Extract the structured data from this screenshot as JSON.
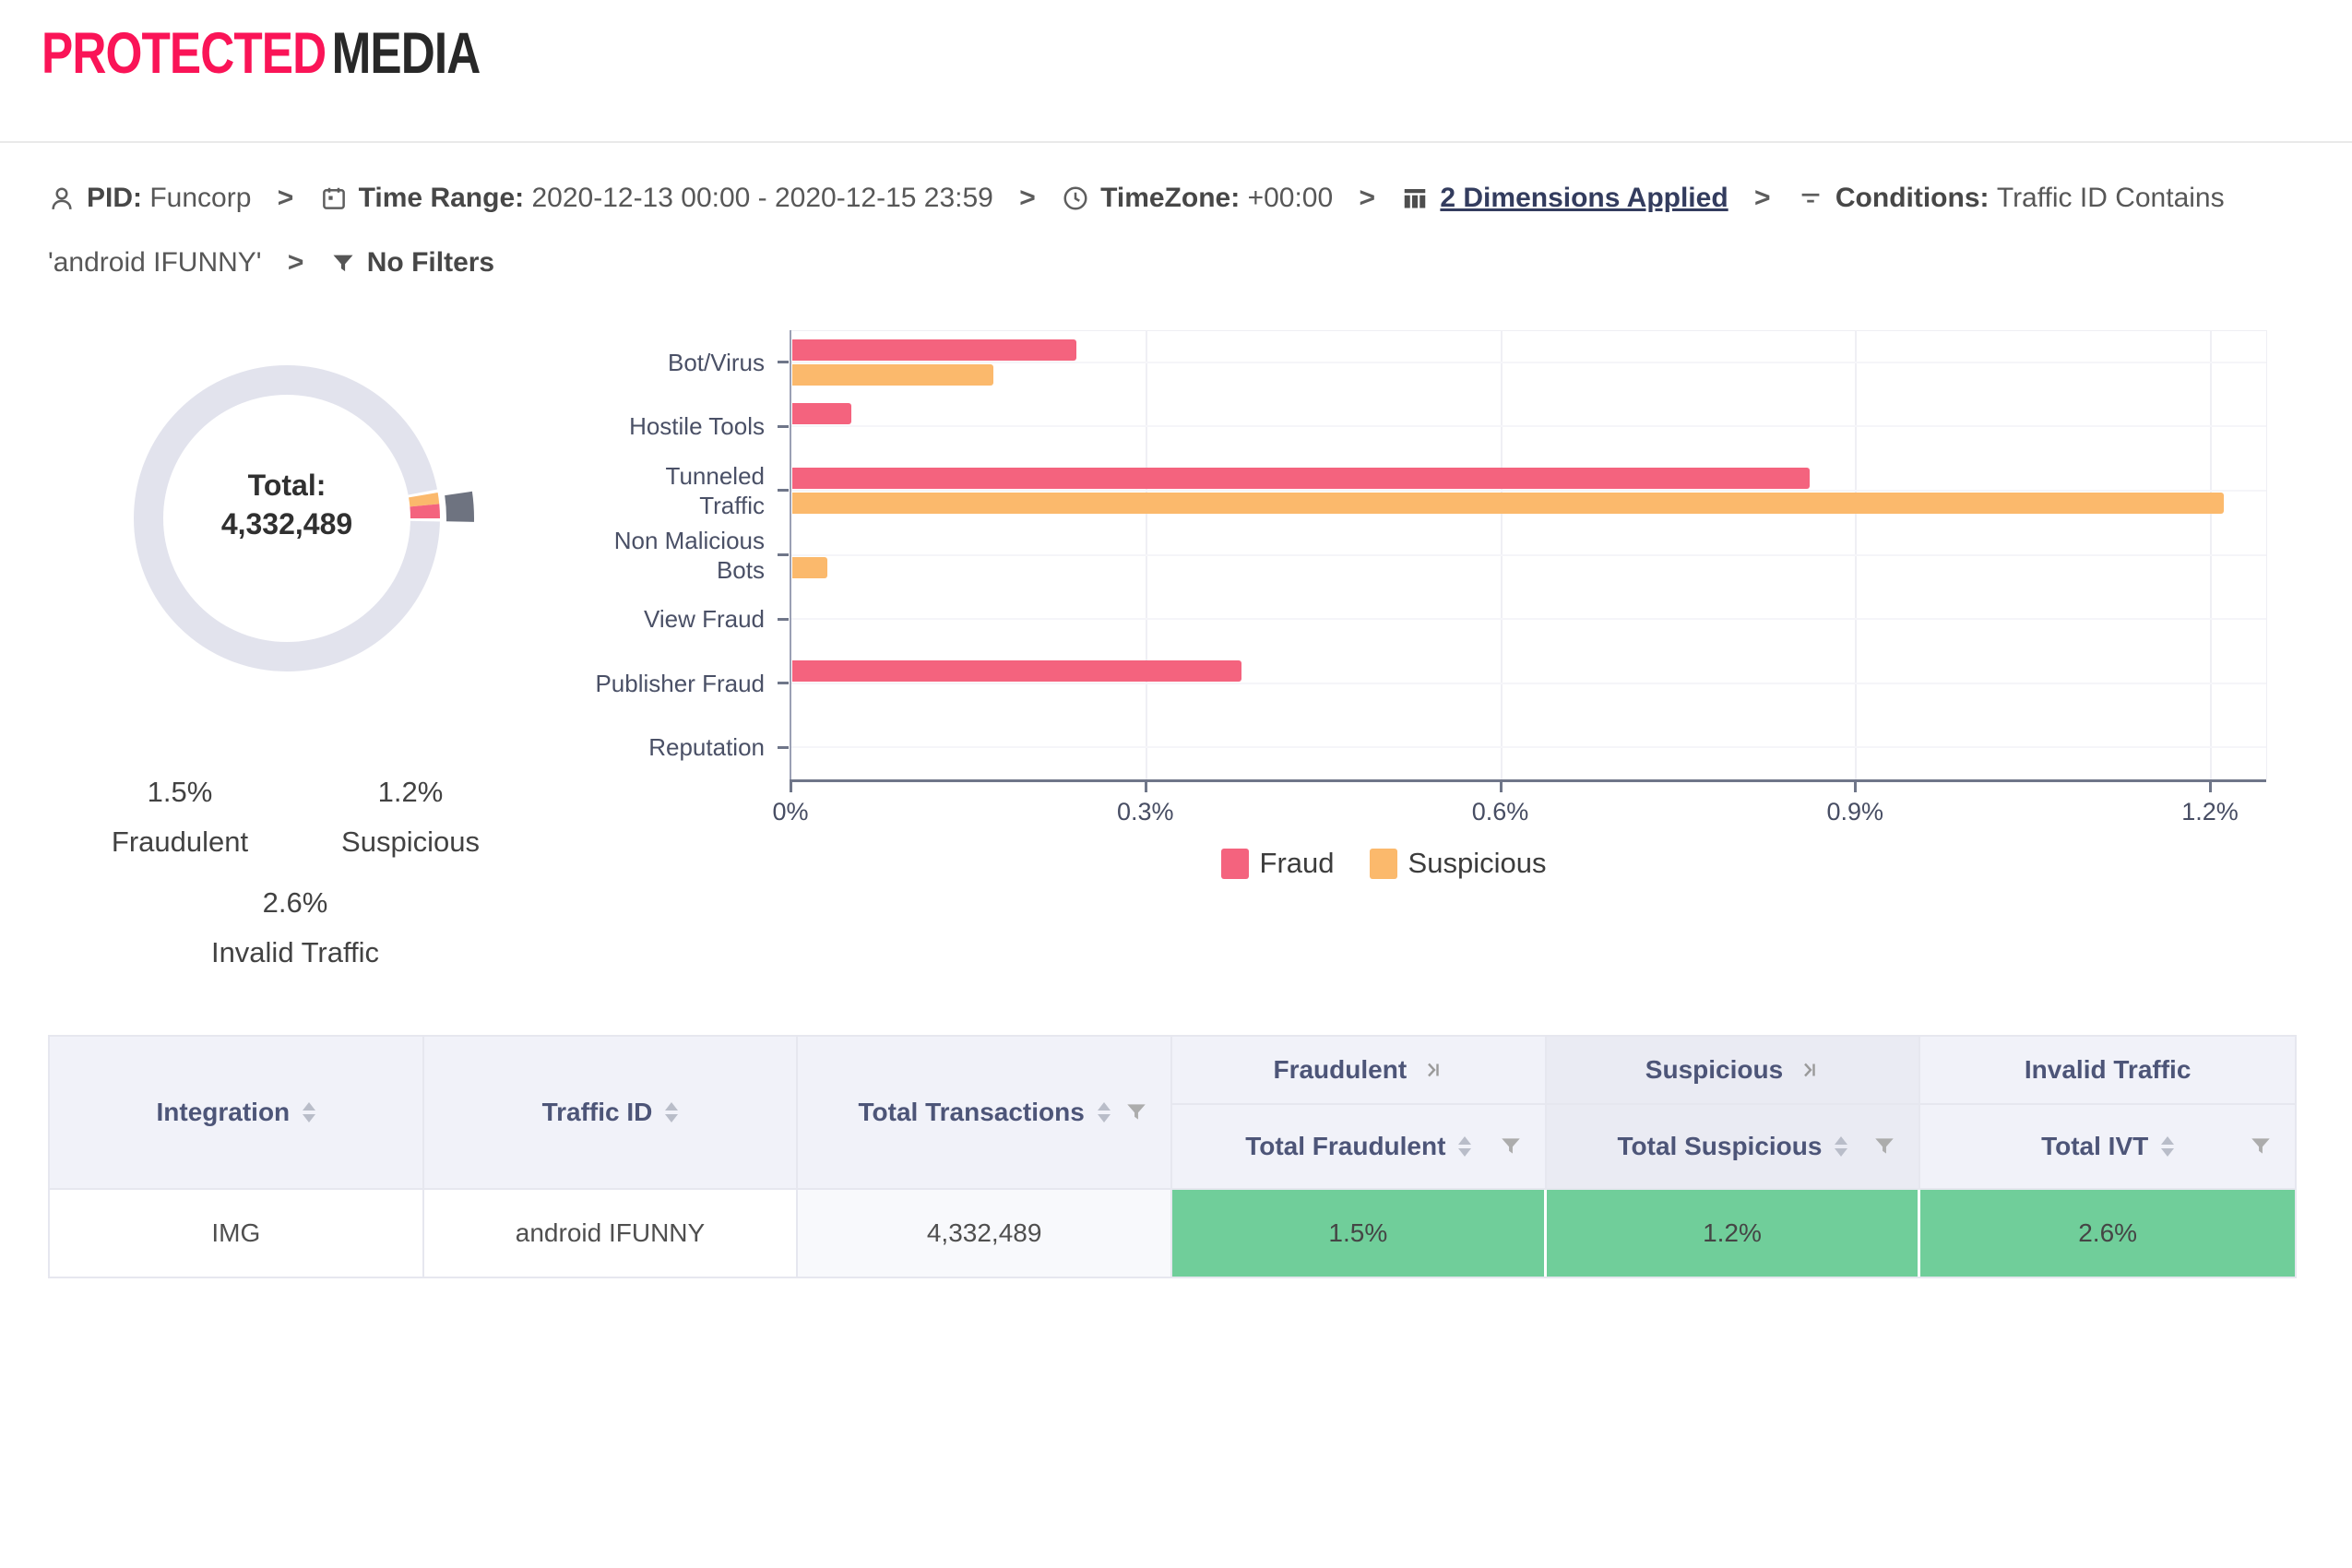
{
  "brand": {
    "name_primary": "PROTECTED",
    "name_secondary": "MEDIA",
    "primary_color": "#fa1457",
    "secondary_color": "#282828"
  },
  "breadcrumb": {
    "separator": ">",
    "pid": {
      "label": "PID:",
      "value": "Funcorp"
    },
    "time_range": {
      "label": "Time Range:",
      "value": "2020-12-13 00:00 - 2020-12-15 23:59"
    },
    "timezone": {
      "label": "TimeZone:",
      "value": "+00:00"
    },
    "dimensions": {
      "label": "2 Dimensions Applied"
    },
    "conditions": {
      "label": "Conditions:",
      "value": "Traffic ID Contains 'android IFUNNY'"
    },
    "filters": {
      "label": "No Filters"
    }
  },
  "donut": {
    "center_label": "Total:",
    "center_value": "4,332,489",
    "ring_color": "#e2e3ed",
    "slices": [
      {
        "name": "Suspicious",
        "pct": 1.2,
        "color": "#fbb96c",
        "exploded": false
      },
      {
        "name": "Fraudulent",
        "pct": 1.5,
        "color": "#f4637e",
        "exploded": false
      },
      {
        "name": "Invalid Traffic",
        "pct": 2.6,
        "color": "#6e7380",
        "exploded": true
      }
    ],
    "labels": [
      {
        "pct": "1.5%",
        "name": "Fraudulent"
      },
      {
        "pct": "1.2%",
        "name": "Suspicious"
      },
      {
        "pct": "2.6%",
        "name": "Invalid Traffic"
      }
    ]
  },
  "chart_data": {
    "type": "bar",
    "orientation": "horizontal",
    "title": "",
    "xlabel": "",
    "ylabel": "",
    "unit": "%",
    "categories": [
      "Bot/Virus",
      "Hostile Tools",
      "Tunneled\nTraffic",
      "Non Malicious\nBots",
      "View Fraud",
      "Publisher Fraud",
      "Reputation"
    ],
    "series": [
      {
        "name": "Fraud",
        "color": "#f4637e",
        "values": [
          0.24,
          0.05,
          0.86,
          0,
          0,
          0.38,
          0
        ]
      },
      {
        "name": "Suspicious",
        "color": "#fbb96c",
        "values": [
          0.17,
          0,
          1.21,
          0.03,
          0,
          0,
          0
        ]
      }
    ],
    "xlim": [
      0,
      1.2
    ],
    "xticks": [
      {
        "value": 0,
        "label": "0%"
      },
      {
        "value": 0.3,
        "label": "0.3%"
      },
      {
        "value": 0.6,
        "label": "0.6%"
      },
      {
        "value": 0.9,
        "label": "0.9%"
      },
      {
        "value": 1.2,
        "label": "1.2%"
      }
    ],
    "grid": true,
    "legend_position": "bottom"
  },
  "table": {
    "simple_columns": [
      {
        "label": "Integration"
      },
      {
        "label": "Traffic ID"
      },
      {
        "label": "Total Transactions"
      }
    ],
    "group_columns": [
      {
        "group": "Fraudulent",
        "sub": "Total Fraudulent"
      },
      {
        "group": "Suspicious",
        "sub": "Total Suspicious"
      },
      {
        "group": "Invalid Traffic",
        "sub": "Total IVT"
      }
    ],
    "row": {
      "integration": "IMG",
      "traffic_id": "android IFUNNY",
      "total_transactions": "4,332,489",
      "total_fraudulent": "1.5%",
      "total_suspicious": "1.2%",
      "total_ivt": "2.6%"
    },
    "status_color": "#70ce9a"
  }
}
